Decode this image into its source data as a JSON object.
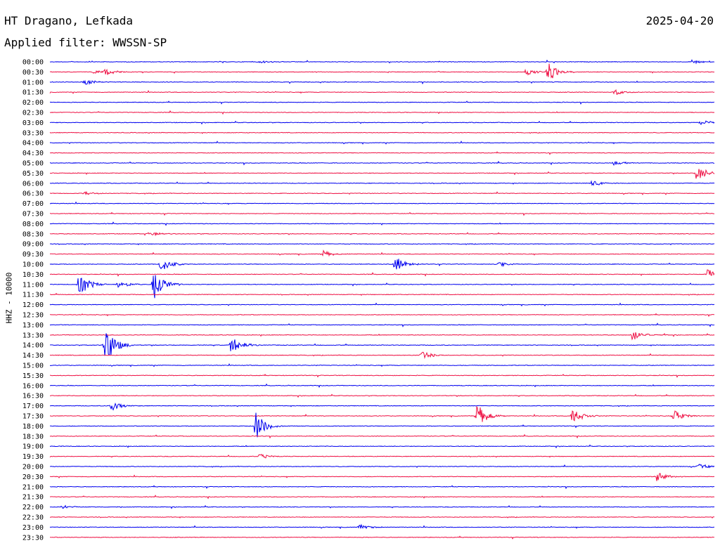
{
  "header": {
    "station": "HT Dragano, Lefkada",
    "date": "2025-04-20",
    "filter": "Applied filter: WWSSN-SP"
  },
  "colors": {
    "even_row": "#0000ee",
    "odd_row": "#ee1144"
  },
  "chart_data": {
    "type": "line",
    "title": "HT Dragano, Lefkada",
    "ylabel": "HHZ - 10000",
    "row_labels": [
      "00:00",
      "00:30",
      "01:00",
      "01:30",
      "02:00",
      "02:30",
      "03:00",
      "03:30",
      "04:00",
      "04:30",
      "05:00",
      "05:30",
      "06:00",
      "06:30",
      "07:00",
      "07:30",
      "08:00",
      "08:30",
      "09:00",
      "09:30",
      "10:00",
      "10:30",
      "11:00",
      "11:30",
      "12:00",
      "12:30",
      "13:00",
      "13:30",
      "14:00",
      "14:30",
      "15:00",
      "15:30",
      "16:00",
      "16:30",
      "17:00",
      "17:30",
      "18:00",
      "18:30",
      "19:00",
      "19:30",
      "20:00",
      "20:30",
      "21:00",
      "21:30",
      "22:00",
      "22:30",
      "23:00",
      "23:30"
    ],
    "row_minutes": 30,
    "events": [
      {
        "row": "00:00",
        "minute": 9.5,
        "amplitude": 0.25
      },
      {
        "row": "00:00",
        "minute": 29,
        "amplitude": 0.4
      },
      {
        "row": "00:30",
        "minute": 2,
        "amplitude": 0.35
      },
      {
        "row": "00:30",
        "minute": 2.5,
        "amplitude": 0.6
      },
      {
        "row": "00:30",
        "minute": 21.5,
        "amplitude": 0.5
      },
      {
        "row": "00:30",
        "minute": 22.5,
        "amplitude": 1.6
      },
      {
        "row": "01:00",
        "minute": 1.6,
        "amplitude": 0.5
      },
      {
        "row": "01:30",
        "minute": 25.5,
        "amplitude": 0.45
      },
      {
        "row": "03:00",
        "minute": 29.4,
        "amplitude": 0.4
      },
      {
        "row": "05:00",
        "minute": 25.5,
        "amplitude": 0.45
      },
      {
        "row": "05:30",
        "minute": 29.2,
        "amplitude": 1.3
      },
      {
        "row": "06:00",
        "minute": 24.5,
        "amplitude": 0.5
      },
      {
        "row": "06:30",
        "minute": 1.6,
        "amplitude": 0.3
      },
      {
        "row": "08:30",
        "minute": 4.5,
        "amplitude": 0.35
      },
      {
        "row": "09:30",
        "minute": 12.3,
        "amplitude": 0.6
      },
      {
        "row": "10:00",
        "minute": 5,
        "amplitude": 1.3
      },
      {
        "row": "10:00",
        "minute": 15.6,
        "amplitude": 1.2
      },
      {
        "row": "10:00",
        "minute": 20.3,
        "amplitude": 0.45
      },
      {
        "row": "10:30",
        "minute": 29.7,
        "amplitude": 0.9
      },
      {
        "row": "11:00",
        "minute": 1.3,
        "amplitude": 2.2
      },
      {
        "row": "11:00",
        "minute": 3.1,
        "amplitude": 0.7
      },
      {
        "row": "11:00",
        "minute": 4.7,
        "amplitude": 2.4
      },
      {
        "row": "13:30",
        "minute": 26.3,
        "amplitude": 0.9
      },
      {
        "row": "14:00",
        "minute": 2.5,
        "amplitude": 3.2
      },
      {
        "row": "14:00",
        "minute": 8.2,
        "amplitude": 1.4
      },
      {
        "row": "14:30",
        "minute": 16.8,
        "amplitude": 0.7
      },
      {
        "row": "17:00",
        "minute": 2.8,
        "amplitude": 0.8
      },
      {
        "row": "17:30",
        "minute": 19.3,
        "amplitude": 1.9
      },
      {
        "row": "17:30",
        "minute": 23.6,
        "amplitude": 1.3
      },
      {
        "row": "17:30",
        "minute": 28.2,
        "amplitude": 0.9
      },
      {
        "row": "18:00",
        "minute": 9.3,
        "amplitude": 2.3
      },
      {
        "row": "19:30",
        "minute": 9.5,
        "amplitude": 0.45
      },
      {
        "row": "20:00",
        "minute": 29.3,
        "amplitude": 0.45
      },
      {
        "row": "20:30",
        "minute": 27.4,
        "amplitude": 0.75
      },
      {
        "row": "22:00",
        "minute": 0.6,
        "amplitude": 0.35
      },
      {
        "row": "23:00",
        "minute": 14,
        "amplitude": 0.45
      }
    ]
  }
}
